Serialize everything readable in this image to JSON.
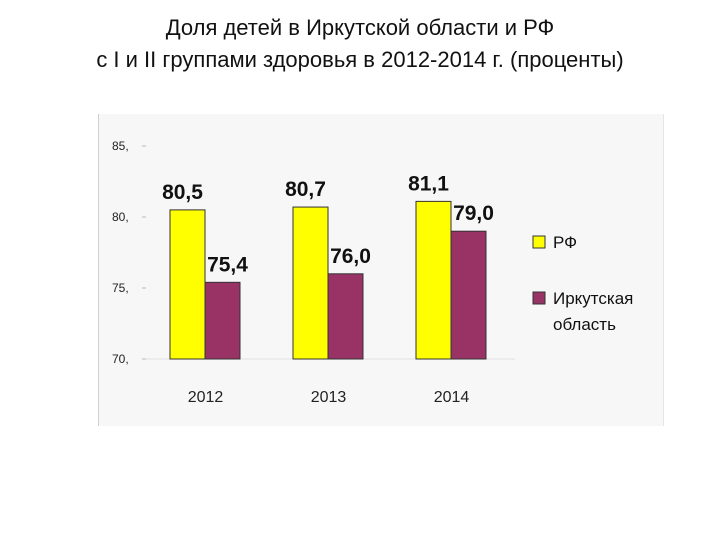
{
  "title_line1": "Доля детей в Иркутской области и РФ",
  "title_line2": "с I и II группами здоровья в 2012-2014 г. (проценты)",
  "chart_data": {
    "type": "bar",
    "title": "Доля детей в Иркутской области и РФ с I и II группами здоровья в 2012-2014 г. (проценты)",
    "categories": [
      "2012",
      "2013",
      "2014"
    ],
    "series": [
      {
        "name": "РФ",
        "values": [
          80.5,
          80.7,
          81.1
        ],
        "labels": [
          "80,5",
          "80,7",
          "81,1"
        ],
        "color": "#ffff00"
      },
      {
        "name": "Иркутская область",
        "legend_lines": [
          "Иркутская",
          "область"
        ],
        "values": [
          75.4,
          76.0,
          79.0
        ],
        "labels": [
          "75,4",
          "76,0",
          "79,0"
        ],
        "color": "#993366"
      }
    ],
    "ylim": [
      70,
      85
    ],
    "yticks": [
      70,
      75,
      80,
      85
    ],
    "ytick_labels": [
      "70,",
      "75,",
      "80,",
      "85,"
    ],
    "legend_position": "right",
    "grid": false
  }
}
